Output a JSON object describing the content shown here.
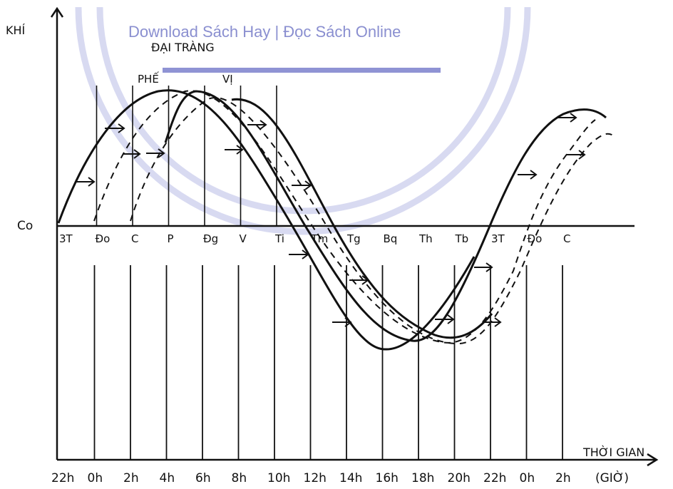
{
  "watermark": {
    "text": "Download Sách Hay | Đọc Sách Online",
    "color": "#8a8fd0",
    "circle_color": "#b9bce6",
    "bar_color": "#8f93d4"
  },
  "axes": {
    "y_label": "KHÍ",
    "x_label": "THỜI GIAN",
    "x_unit": "(GIỜ)",
    "baseline_label": "Co"
  },
  "curve_labels": [
    "ĐẠI TRÀNG",
    "PHẾ",
    "VỊ"
  ],
  "organ_labels": [
    "3T",
    "Đo",
    "C",
    "P",
    "Đg",
    "V",
    "Ti",
    "Tm",
    "Tg",
    "Bq",
    "Th",
    "Tb",
    "3T",
    "Đo",
    "C"
  ],
  "hour_labels": [
    "22h",
    "0h",
    "2h",
    "4h",
    "6h",
    "8h",
    "10h",
    "12h",
    "14h",
    "16h",
    "18h",
    "20h",
    "22h",
    "0h",
    "2h"
  ],
  "colors": {
    "ink": "#111111"
  }
}
